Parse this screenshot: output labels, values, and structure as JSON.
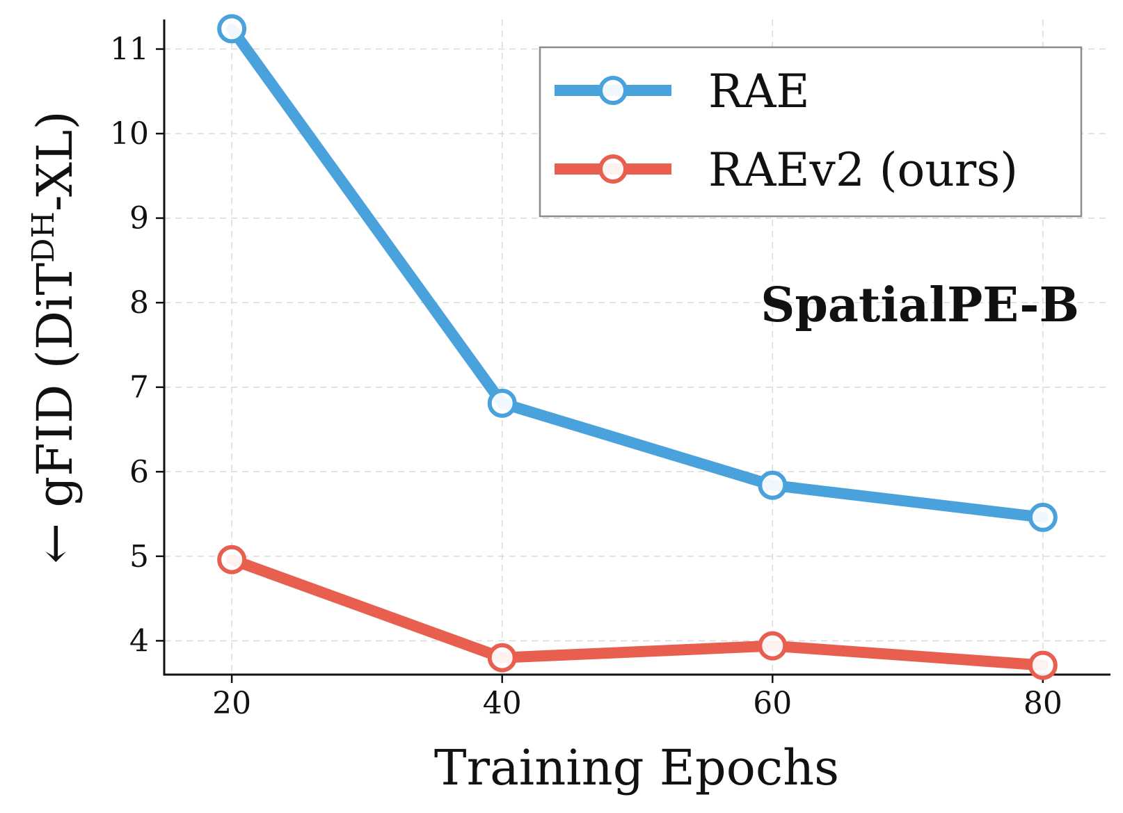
{
  "chart_data": {
    "type": "line",
    "xlabel": "Training Epochs",
    "ylabel": {
      "arrow": "←",
      "main": "gFID (DiT",
      "superscript": "DH",
      "suffix": "-XL)"
    },
    "annotation": "SpatialPE-B",
    "x": [
      20,
      40,
      60,
      80
    ],
    "xticks": [
      "20",
      "40",
      "60",
      "80"
    ],
    "yticks": [
      "4",
      "5",
      "6",
      "7",
      "8",
      "9",
      "10",
      "11"
    ],
    "xlim": [
      15,
      85
    ],
    "ylim": [
      3.6,
      11.35
    ],
    "grid": true,
    "legend_position": "top-right",
    "series": [
      {
        "name": "RAE",
        "values": [
          11.24,
          6.81,
          5.84,
          5.46
        ],
        "color": "#4aa2dc"
      },
      {
        "name": "RAEv2 (ours)",
        "values": [
          4.96,
          3.8,
          3.94,
          3.71
        ],
        "color": "#e85f4f"
      }
    ]
  }
}
